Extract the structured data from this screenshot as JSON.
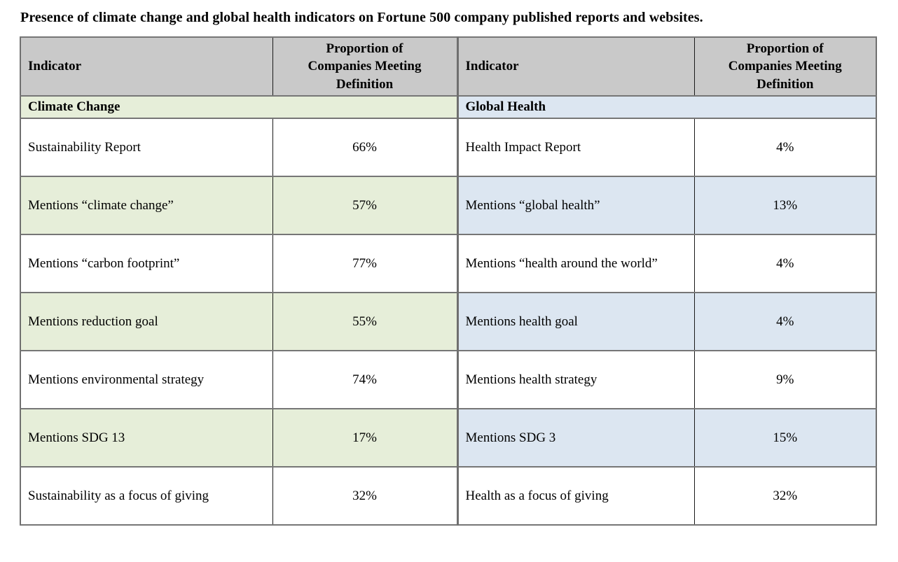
{
  "title": "Presence of climate change and global health indicators on Fortune 500 company published reports and websites.",
  "header": {
    "indicator_label": "Indicator",
    "proportion_label": "Proportion of\nCompanies Meeting\nDefinition"
  },
  "sections": {
    "left": "Climate Change",
    "right": "Global Health"
  },
  "rows": [
    {
      "left_indicator": "Sustainability Report",
      "left_value": "66%",
      "right_indicator": "Health Impact Report",
      "right_value": "4%"
    },
    {
      "left_indicator": "Mentions “climate change”",
      "left_value": "57%",
      "right_indicator": "Mentions “global health”",
      "right_value": "13%"
    },
    {
      "left_indicator": "Mentions “carbon footprint”",
      "left_value": "77%",
      "right_indicator": "Mentions “health around the world”",
      "right_value": "4%"
    },
    {
      "left_indicator": "Mentions reduction goal",
      "left_value": "55%",
      "right_indicator": "Mentions health goal",
      "right_value": "4%"
    },
    {
      "left_indicator": "Mentions environmental strategy",
      "left_value": "74%",
      "right_indicator": "Mentions health strategy",
      "right_value": "9%"
    },
    {
      "left_indicator": "Mentions SDG 13",
      "left_value": "17%",
      "right_indicator": "Mentions SDG 3",
      "right_value": "15%"
    },
    {
      "left_indicator": "Sustainability as a focus of giving",
      "left_value": "32%",
      "right_indicator": "Health as a focus of giving",
      "right_value": "32%"
    }
  ],
  "colors": {
    "header_bg": "#c9c9c9",
    "climate_section_bg": "#e6eed9",
    "health_section_bg": "#dce6f1",
    "horizontal_border": "#767676",
    "vertical_border": "#1a1a1a"
  },
  "chart_data": {
    "type": "table",
    "title": "Presence of climate change and global health indicators on Fortune 500 company published reports and websites.",
    "column_headers": [
      "Indicator",
      "Proportion of Companies Meeting Definition",
      "Indicator",
      "Proportion of Companies Meeting Definition"
    ],
    "sections": [
      {
        "name": "Climate Change",
        "rows": [
          {
            "indicator": "Sustainability Report",
            "proportion_pct": 66
          },
          {
            "indicator": "Mentions “climate change”",
            "proportion_pct": 57
          },
          {
            "indicator": "Mentions “carbon footprint”",
            "proportion_pct": 77
          },
          {
            "indicator": "Mentions reduction goal",
            "proportion_pct": 55
          },
          {
            "indicator": "Mentions environmental strategy",
            "proportion_pct": 74
          },
          {
            "indicator": "Mentions SDG 13",
            "proportion_pct": 17
          },
          {
            "indicator": "Sustainability as a focus of giving",
            "proportion_pct": 32
          }
        ]
      },
      {
        "name": "Global Health",
        "rows": [
          {
            "indicator": "Health Impact Report",
            "proportion_pct": 4
          },
          {
            "indicator": "Mentions “global health”",
            "proportion_pct": 13
          },
          {
            "indicator": "Mentions “health around the world”",
            "proportion_pct": 4
          },
          {
            "indicator": "Mentions health goal",
            "proportion_pct": 4
          },
          {
            "indicator": "Mentions health strategy",
            "proportion_pct": 9
          },
          {
            "indicator": "Mentions SDG 3",
            "proportion_pct": 15
          },
          {
            "indicator": "Health as a focus of giving",
            "proportion_pct": 32
          }
        ]
      }
    ]
  }
}
